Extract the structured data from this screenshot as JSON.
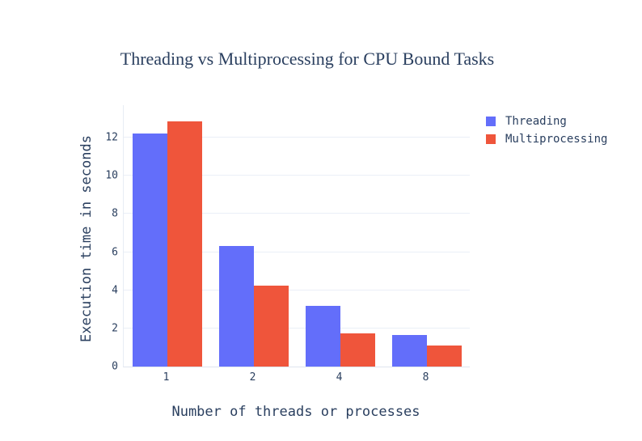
{
  "chart_data": {
    "type": "bar",
    "title": "Threading vs Multiprocessing for CPU Bound Tasks",
    "categories": [
      "1",
      "2",
      "4",
      "8"
    ],
    "series": [
      {
        "name": "Threading",
        "color": "#636EFA",
        "values": [
          12.2,
          6.3,
          3.2,
          1.65
        ]
      },
      {
        "name": "Multiprocessing",
        "color": "#EF553B",
        "values": [
          12.85,
          4.25,
          1.75,
          1.1
        ]
      }
    ],
    "xlabel": "Number of threads or processes",
    "ylabel": "Execution time in seconds",
    "ylim": [
      0,
      13.7
    ],
    "yticks": [
      0,
      2,
      4,
      6,
      8,
      10,
      12
    ],
    "grid": true,
    "legend_position": "right",
    "colors": {
      "text": "#2a3f5f",
      "grid": "#eaeff7",
      "axis_line": "#dfe5ef",
      "background": "#ffffff"
    }
  }
}
